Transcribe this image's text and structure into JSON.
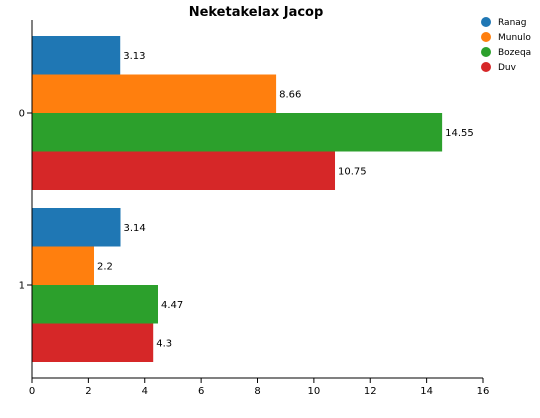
{
  "chart_data": {
    "type": "bar",
    "orientation": "horizontal",
    "title": "Neketakelax Jacop",
    "xlabel": "",
    "ylabel": "",
    "categories": [
      "0",
      "1"
    ],
    "xlim": [
      0,
      16
    ],
    "x_ticks": [
      0,
      2,
      4,
      6,
      8,
      10,
      12,
      14,
      16
    ],
    "grid": false,
    "legend_position": "top-right",
    "series": [
      {
        "name": "Ranag",
        "color": "#1f77b4",
        "values": [
          3.13,
          3.14
        ]
      },
      {
        "name": "Munulo",
        "color": "#ff7f0e",
        "values": [
          8.66,
          2.2
        ]
      },
      {
        "name": "Bozeqa",
        "color": "#2ca02c",
        "values": [
          14.55,
          4.47
        ]
      },
      {
        "name": "Duv",
        "color": "#d62728",
        "values": [
          10.75,
          4.3
        ]
      }
    ],
    "data_labels": [
      [
        "3.13",
        "3.14"
      ],
      [
        "8.66",
        "2.2"
      ],
      [
        "14.55",
        "4.47"
      ],
      [
        "10.75",
        "4.3"
      ]
    ]
  }
}
